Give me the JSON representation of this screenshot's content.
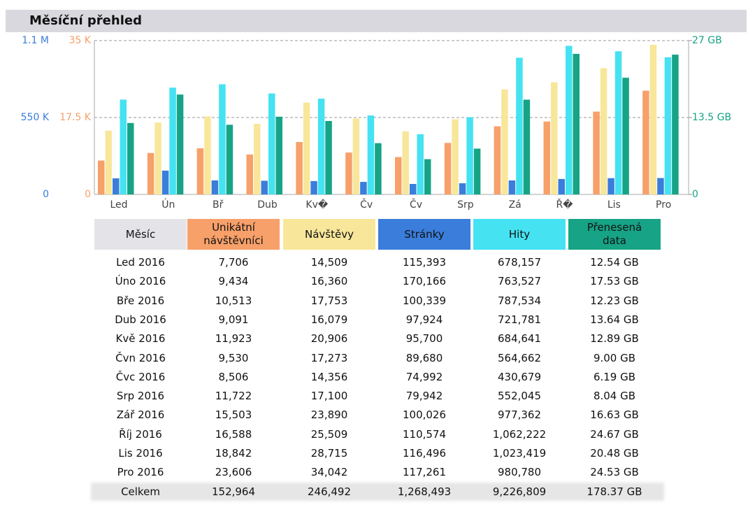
{
  "chart_data": {
    "type": "bar",
    "title": "Měsíční přehled",
    "categories": [
      "Led",
      "Ún",
      "Bř",
      "Dub",
      "Kv�",
      "Čv",
      "Čv",
      "Srp",
      "Zá",
      "Ř�",
      "Lis",
      "Pro"
    ],
    "ylim": [
      0,
      35000
    ],
    "yticks": [
      {
        "value": 35000,
        "label": "35 K"
      },
      {
        "value": 17500,
        "label": "17.5 K"
      },
      0
    ],
    "y3lim": [
      0,
      1100000
    ],
    "y3ticks": [
      {
        "value": 1100000,
        "label": "1.1 M"
      },
      {
        "value": 550000,
        "label": "550 K"
      },
      0
    ],
    "y2lim": [
      0,
      27
    ],
    "y2ticks": [
      {
        "value": 27,
        "label": "27 GB"
      },
      {
        "value": 13.5,
        "label": "13.5 GB"
      },
      0
    ],
    "grid": true,
    "series": [
      {
        "name": "Unikátní návštěvníci",
        "color": "#f7a06a",
        "axis": "y",
        "values": [
          7706,
          9434,
          10513,
          9091,
          11923,
          9530,
          8506,
          11722,
          15503,
          16588,
          18842,
          23606
        ],
        "value_labels": [
          "7,706",
          "9,434",
          "10,513",
          "9,091",
          "11,923",
          "9,530",
          "8,506",
          "11,722",
          "15,503",
          "16,588",
          "18,842",
          "23,606"
        ]
      },
      {
        "name": "Návštěvy",
        "color": "#f8e79a",
        "axis": "y",
        "values": [
          14509,
          16360,
          17753,
          16079,
          20906,
          17273,
          14356,
          17100,
          23890,
          25509,
          28715,
          34042
        ],
        "value_labels": [
          "14,509",
          "16,360",
          "17,753",
          "16,079",
          "20,906",
          "17,273",
          "14,356",
          "17,100",
          "23,890",
          "25,509",
          "28,715",
          "34,042"
        ]
      },
      {
        "name": "Stránky",
        "color": "#3a7ddb",
        "axis": "y3",
        "values": [
          115393,
          170166,
          100339,
          97924,
          95700,
          89680,
          74992,
          79942,
          100026,
          110574,
          116496,
          117261
        ],
        "value_labels": [
          "115,393",
          "170,166",
          "100,339",
          "97,924",
          "95,700",
          "89,680",
          "74,992",
          "79,942",
          "100,026",
          "110,574",
          "116,496",
          "117,261"
        ]
      },
      {
        "name": "Hity",
        "color": "#45e2f2",
        "axis": "y3",
        "values": [
          678157,
          763527,
          787534,
          721781,
          684641,
          564662,
          430679,
          552045,
          977362,
          1062222,
          1023419,
          980780
        ],
        "value_labels": [
          "678,157",
          "763,527",
          "787,534",
          "721,781",
          "684,641",
          "564,662",
          "430,679",
          "552,045",
          "977,362",
          "1,062,222",
          "1,023,419",
          "980,780"
        ]
      },
      {
        "name": "Přenesená data",
        "color": "#17a386",
        "axis": "y2",
        "values": [
          12.54,
          17.53,
          12.23,
          13.64,
          12.89,
          9.0,
          6.19,
          8.04,
          16.63,
          24.67,
          20.48,
          24.53
        ],
        "value_labels": [
          "12.54 GB",
          "17.53 GB",
          "12.23 GB",
          "13.64 GB",
          "12.89 GB",
          "9.00 GB",
          "6.19 GB",
          "8.04 GB",
          "16.63 GB",
          "24.67 GB",
          "20.48 GB",
          "24.53 GB"
        ]
      }
    ]
  },
  "table": {
    "header": "Měsíc",
    "rows": [
      "Led 2016",
      "Úno 2016",
      "Bře 2016",
      "Dub 2016",
      "Kvě 2016",
      "Čvn 2016",
      "Čvc 2016",
      "Srp 2016",
      "Zář 2016",
      "Říj 2016",
      "Lis 2016",
      "Pro 2016"
    ],
    "total_label": "Celkem",
    "totals": [
      "152,964",
      "246,492",
      "1,268,493",
      "9,226,809",
      "178.37 GB"
    ]
  }
}
